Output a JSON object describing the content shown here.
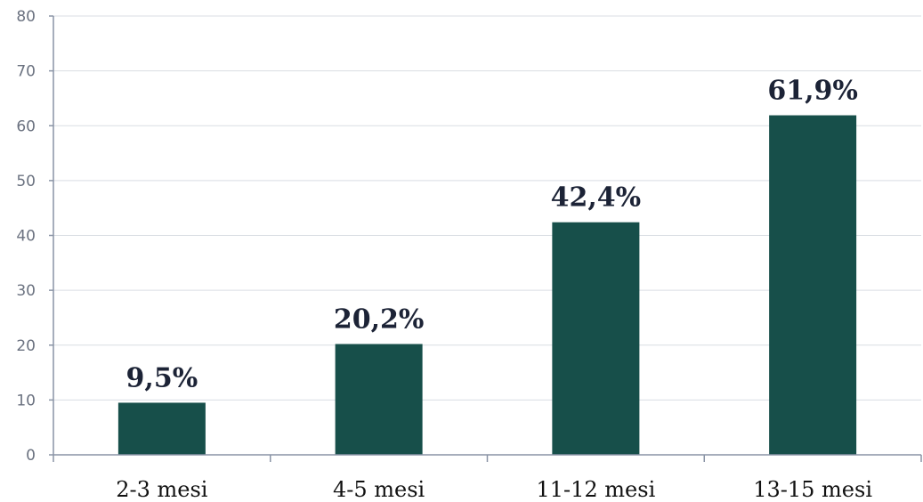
{
  "chart_data": {
    "type": "bar",
    "title": "",
    "xlabel": "",
    "ylabel": "",
    "categories": [
      "2-3 mesi",
      "4-5 mesi",
      "11-12 mesi",
      "13-15 mesi"
    ],
    "values": [
      9.5,
      20.2,
      42.4,
      61.9
    ],
    "data_labels": [
      "9,5%",
      "20,2%",
      "42,4%",
      "61,9%"
    ],
    "ylim": [
      0,
      80
    ],
    "yticks": [
      0,
      10,
      20,
      30,
      40,
      50,
      60,
      70,
      80
    ],
    "grid": true,
    "legend": "none",
    "colors": {
      "bar": "#174f4a",
      "grid": "#d9dde3",
      "axis": "#8a94a6"
    }
  }
}
